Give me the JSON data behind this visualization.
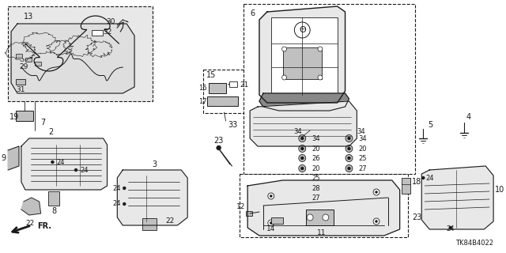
{
  "bg_color": "#ffffff",
  "line_color": "#1a1a1a",
  "diagram_id": "TK84B4022",
  "fig_width": 6.4,
  "fig_height": 3.2,
  "dpi": 100,
  "gray_fill": "#e8e8e8",
  "mid_gray": "#c0c0c0",
  "dark_gray": "#888888"
}
